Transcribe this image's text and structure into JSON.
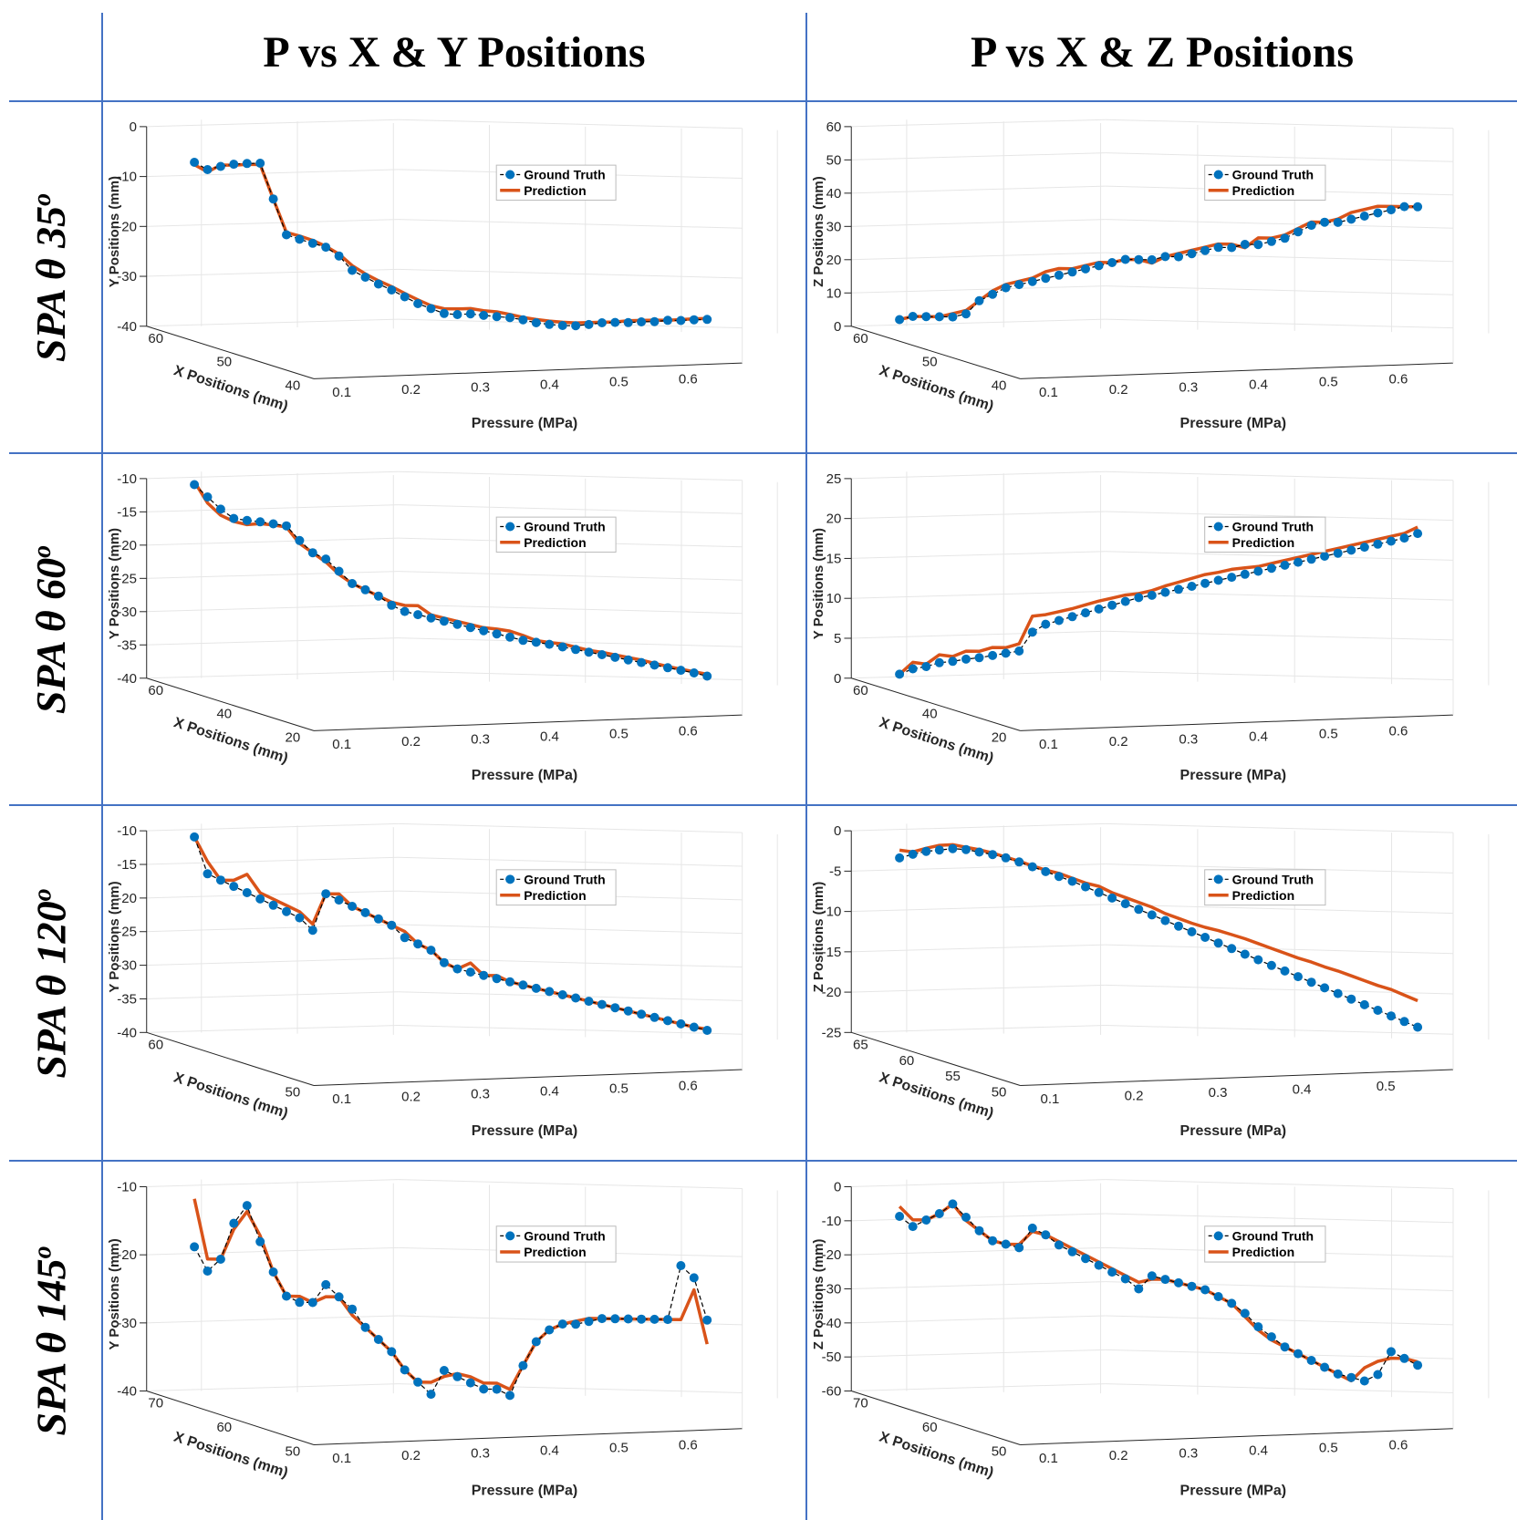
{
  "headers": {
    "col1": "P vs X & Y Positions",
    "col2": "P vs X & Z Positions"
  },
  "rows": [
    {
      "label": "SPA θ 35",
      "sup": "o"
    },
    {
      "label": "SPA θ 60",
      "sup": "o"
    },
    {
      "label": "SPA θ 120",
      "sup": "o"
    },
    {
      "label": "SPA θ 145",
      "sup": "o"
    }
  ],
  "colors": {
    "ground_truth": "#0072bd",
    "prediction": "#d95319",
    "grid_rule": "#4472c4",
    "axis_grid": "#e6e6e6"
  },
  "chart_data": [
    {
      "id": "r1c1",
      "type": "line3d",
      "xlabel": "Pressure (MPa)",
      "ylabel": "X Positions (mm)",
      "zlabel": "Y Positions (mm)",
      "xticks": [
        "0.1",
        "0.2",
        "0.3",
        "0.4",
        "0.5",
        "0.6"
      ],
      "yticks": [
        "60",
        "50",
        "40"
      ],
      "zticks": [
        "0",
        "-10",
        "-20",
        "-30",
        "-40"
      ],
      "legend": [
        "Ground Truth",
        "Prediction"
      ],
      "legend_position": "top-right",
      "zlim": [
        -42,
        0
      ],
      "series": [
        {
          "name": "Ground Truth",
          "values": [
            -7.5,
            -9.0,
            -8.3,
            -7.8,
            -7.6,
            -7.5,
            -15,
            -22.5,
            -23.4,
            -24.2,
            -25.0,
            -26.8,
            -29.8,
            -31.2,
            -32.6,
            -33.8,
            -35.2,
            -36.6,
            -37.6,
            -38.6,
            -38.8,
            -38.6,
            -38.9,
            -39.1,
            -39.3,
            -39.7,
            -40.3,
            -40.6,
            -40.8,
            -40.8,
            -40.5,
            -40.1,
            -40.0,
            -40.0,
            -39.8,
            -39.7,
            -39.4,
            -39.4,
            -39.2,
            -39.1
          ]
        },
        {
          "name": "Prediction",
          "values": [
            -8.0,
            -9.5,
            -8.0,
            -8.0,
            -7.8,
            -7.8,
            -15,
            -22.0,
            -22.7,
            -23.6,
            -24.8,
            -26.4,
            -28.8,
            -30.5,
            -31.9,
            -33.1,
            -34.5,
            -35.8,
            -37.0,
            -37.6,
            -37.6,
            -37.5,
            -37.9,
            -38.1,
            -38.6,
            -39.2,
            -39.6,
            -39.9,
            -40.1,
            -40.2,
            -40.1,
            -40.0,
            -39.9,
            -39.6,
            -39.5,
            -39.4,
            -39.4,
            -39.2,
            -39.0,
            -38.9
          ]
        }
      ]
    },
    {
      "id": "r1c2",
      "type": "line3d",
      "xlabel": "Pressure (MPa)",
      "ylabel": "X Positions (mm)",
      "zlabel": "Z Positions (mm)",
      "xticks": [
        "0.1",
        "0.2",
        "0.3",
        "0.4",
        "0.5",
        "0.6"
      ],
      "yticks": [
        "60",
        "50",
        "40"
      ],
      "zticks": [
        "60",
        "50",
        "40",
        "30",
        "20",
        "10",
        "0"
      ],
      "legend": [
        "Ground Truth",
        "Prediction"
      ],
      "legend_position": "top-right",
      "zlim": [
        0,
        60
      ],
      "series": [
        {
          "name": "Ground Truth",
          "values": [
            2,
            3,
            3,
            3,
            3,
            4,
            8,
            10,
            12,
            13,
            14,
            15,
            16,
            17,
            18,
            19,
            20,
            21,
            21,
            21,
            22,
            22,
            23,
            24,
            25,
            25,
            26,
            26,
            27,
            28,
            30,
            32,
            33,
            33,
            34,
            35,
            36,
            37,
            38,
            38
          ]
        },
        {
          "name": "Prediction",
          "values": [
            2,
            3,
            3,
            3,
            4,
            5,
            8,
            11,
            13,
            14,
            15,
            17,
            18,
            18,
            19,
            20,
            20,
            21,
            21,
            20,
            22,
            23,
            24,
            25,
            26,
            26,
            25,
            28,
            28,
            29,
            31,
            33,
            33,
            34,
            36,
            37,
            38,
            38,
            38,
            38
          ]
        }
      ]
    },
    {
      "id": "r2c1",
      "type": "line3d",
      "xlabel": "Pressure (MPa)",
      "ylabel": "X Positions (mm)",
      "zlabel": "Y Positions (mm)",
      "xticks": [
        "0.1",
        "0.2",
        "0.3",
        "0.4",
        "0.5",
        "0.6"
      ],
      "yticks": [
        "60",
        "40",
        "20"
      ],
      "zticks": [
        "-10",
        "-15",
        "-20",
        "-25",
        "-30",
        "-35",
        "-40"
      ],
      "legend": [
        "Ground Truth",
        "Prediction"
      ],
      "legend_position": "top-right",
      "zlim": [
        -42,
        -9
      ],
      "series": [
        {
          "name": "Ground Truth",
          "values": [
            -10,
            -12,
            -14,
            -15.5,
            -15.8,
            -16,
            -16.3,
            -16.6,
            -19,
            -21,
            -22,
            -24,
            -26,
            -27,
            -28,
            -29.5,
            -30.5,
            -31,
            -31.5,
            -32,
            -32.5,
            -33,
            -33.5,
            -34,
            -34.5,
            -35,
            -35.3,
            -35.6,
            -36,
            -36.4,
            -36.8,
            -37.2,
            -37.6,
            -38,
            -38.4,
            -38.8,
            -39.2,
            -39.6,
            -40,
            -40.5
          ]
        },
        {
          "name": "Prediction",
          "values": [
            -9.5,
            -13,
            -15,
            -16,
            -16.5,
            -16.3,
            -16.5,
            -16.8,
            -19.5,
            -21,
            -22.5,
            -24.5,
            -26,
            -27,
            -28,
            -29,
            -29.5,
            -29.5,
            -31,
            -31.5,
            -32,
            -32.5,
            -33,
            -33.2,
            -33.5,
            -34.2,
            -35,
            -35.3,
            -35.5,
            -36,
            -36.5,
            -36.8,
            -37.2,
            -37.6,
            -38,
            -38.5,
            -39,
            -39.4,
            -39.8,
            -40.2
          ]
        }
      ]
    },
    {
      "id": "r2c2",
      "type": "line3d",
      "xlabel": "Pressure (MPa)",
      "ylabel": "X Positions (mm)",
      "zlabel": "Y Positions (mm)",
      "xticks": [
        "0.1",
        "0.2",
        "0.3",
        "0.4",
        "0.5",
        "0.6"
      ],
      "yticks": [
        "60",
        "40",
        "20"
      ],
      "zticks": [
        "25",
        "20",
        "15",
        "10",
        "5",
        "0"
      ],
      "legend": [
        "Ground Truth",
        "Prediction"
      ],
      "legend_position": "top-right",
      "zlim": [
        0,
        25
      ],
      "series": [
        {
          "name": "Ground Truth",
          "values": [
            0.5,
            1.2,
            1.5,
            2,
            2.2,
            2.5,
            2.7,
            3,
            3.3,
            3.6,
            6,
            7,
            7.5,
            8,
            8.5,
            9,
            9.5,
            10,
            10.5,
            10.8,
            11.2,
            11.6,
            12,
            12.4,
            12.8,
            13.2,
            13.6,
            14,
            14.4,
            14.8,
            15.2,
            15.6,
            16,
            16.4,
            16.8,
            17.2,
            17.6,
            18,
            18.4,
            19
          ]
        },
        {
          "name": "Prediction",
          "values": [
            0.5,
            2,
            1.8,
            3,
            2.8,
            3.5,
            3.5,
            4,
            4,
            4.5,
            8,
            8.2,
            8.6,
            9,
            9.5,
            10,
            10.4,
            10.8,
            11,
            11.4,
            12,
            12.5,
            13,
            13.5,
            13.8,
            14.2,
            14.4,
            14.6,
            15,
            15.4,
            15.8,
            16.2,
            16.6,
            17,
            17.4,
            17.8,
            18.2,
            18.6,
            19,
            19.8
          ]
        }
      ]
    },
    {
      "id": "r3c1",
      "type": "line3d",
      "xlabel": "Pressure (MPa)",
      "ylabel": "X Positions (mm)",
      "zlabel": "Y Positions (mm)",
      "xticks": [
        "0.1",
        "0.2",
        "0.3",
        "0.4",
        "0.5",
        "0.6"
      ],
      "yticks": [
        "60",
        "50"
      ],
      "zticks": [
        "-10",
        "-15",
        "-20",
        "-25",
        "-30",
        "-35",
        "-40"
      ],
      "legend": [
        "Ground Truth",
        "Prediction"
      ],
      "legend_position": "top-right",
      "zlim": [
        -42,
        -9
      ],
      "series": [
        {
          "name": "Ground Truth",
          "values": [
            -10,
            -16,
            -17,
            -18,
            -19,
            -20,
            -21,
            -22,
            -23,
            -25,
            -19,
            -20,
            -21,
            -22,
            -23,
            -24,
            -26,
            -27,
            -28,
            -30,
            -31,
            -31.5,
            -32,
            -32.5,
            -33,
            -33.5,
            -34,
            -34.5,
            -35,
            -35.5,
            -36,
            -36.5,
            -37,
            -37.5,
            -38,
            -38.5,
            -39,
            -39.5,
            -40,
            -40.5
          ]
        },
        {
          "name": "Prediction",
          "values": [
            -10,
            -14,
            -17,
            -17,
            -16,
            -19,
            -20,
            -21,
            -22,
            -24,
            -19,
            -19,
            -21,
            -22,
            -23,
            -24,
            -25,
            -27,
            -28,
            -30,
            -31,
            -30,
            -32,
            -32,
            -33,
            -33.5,
            -34,
            -34.5,
            -35,
            -35.5,
            -36,
            -36.5,
            -37,
            -37.5,
            -38,
            -38.5,
            -39,
            -39.5,
            -40,
            -40.3
          ]
        }
      ]
    },
    {
      "id": "r3c2",
      "type": "line3d",
      "xlabel": "Pressure (MPa)",
      "ylabel": "X Positions (mm)",
      "zlabel": "Z Positions (mm)",
      "xticks": [
        "0.1",
        "0.2",
        "0.3",
        "0.4",
        "0.5"
      ],
      "yticks": [
        "65",
        "60",
        "55",
        "50"
      ],
      "zticks": [
        "0",
        "-5",
        "-10",
        "-15",
        "-20",
        "-25"
      ],
      "legend": [
        "Ground Truth",
        "Prediction"
      ],
      "legend_position": "top-right",
      "zlim": [
        -26,
        0
      ],
      "series": [
        {
          "name": "Ground Truth",
          "values": [
            -3.5,
            -3,
            -2.6,
            -2.4,
            -2.2,
            -2.3,
            -2.6,
            -2.9,
            -3.3,
            -3.8,
            -4.4,
            -5,
            -5.6,
            -6.2,
            -6.9,
            -7.6,
            -8.3,
            -9,
            -9.7,
            -10.4,
            -11.1,
            -11.8,
            -12.5,
            -13.2,
            -13.9,
            -14.6,
            -15.3,
            -16,
            -16.7,
            -17.4,
            -18.1,
            -18.8,
            -19.5,
            -20.2,
            -20.9,
            -21.6,
            -22.3,
            -23,
            -23.7,
            -24.4
          ]
        },
        {
          "name": "Prediction",
          "values": [
            -2.5,
            -2.7,
            -2.2,
            -1.8,
            -1.7,
            -2.0,
            -2.3,
            -2.7,
            -3.2,
            -3.7,
            -4.3,
            -4.8,
            -5.2,
            -5.8,
            -6.4,
            -6.8,
            -7.6,
            -8.2,
            -8.8,
            -9.4,
            -10.2,
            -10.8,
            -11.4,
            -11.9,
            -12.3,
            -12.8,
            -13.3,
            -13.9,
            -14.5,
            -15.1,
            -15.7,
            -16.2,
            -16.8,
            -17.3,
            -17.9,
            -18.5,
            -19.1,
            -19.6,
            -20.3,
            -21.0
          ]
        }
      ]
    },
    {
      "id": "r4c1",
      "type": "line3d",
      "xlabel": "Pressure (MPa)",
      "ylabel": "X Positions (mm)",
      "zlabel": "Y Positions (mm)",
      "xticks": [
        "0.1",
        "0.2",
        "0.3",
        "0.4",
        "0.5",
        "0.6"
      ],
      "yticks": [
        "70",
        "60",
        "50"
      ],
      "zticks": [
        "-10",
        "-20",
        "-30",
        "-40"
      ],
      "legend": [
        "Ground Truth",
        "Prediction"
      ],
      "legend_position": "top-right",
      "zlim": [
        -42,
        -8
      ],
      "series": [
        {
          "name": "Ground Truth",
          "values": [
            -18,
            -22,
            -20,
            -14,
            -11,
            -17,
            -22,
            -26,
            -27,
            -27,
            -24,
            -26,
            -28,
            -31,
            -33,
            -35,
            -38,
            -40,
            -42,
            -38,
            -39,
            -40,
            -41,
            -41,
            -42,
            -37,
            -33,
            -31,
            -30,
            -30,
            -29.5,
            -29,
            -29,
            -29,
            -29,
            -29,
            -29,
            -20,
            -22,
            -29
          ]
        },
        {
          "name": "Prediction",
          "values": [
            -10,
            -20,
            -20,
            -15,
            -12,
            -16,
            -22,
            -26,
            -26,
            -27,
            -26,
            -26,
            -29,
            -31,
            -33,
            -35,
            -38,
            -40,
            -40,
            -39,
            -38.5,
            -39,
            -40,
            -40,
            -41,
            -37,
            -33,
            -31,
            -30,
            -29.5,
            -29,
            -29,
            -29,
            -29,
            -29,
            -29,
            -29,
            -29,
            -24,
            -33
          ]
        }
      ]
    },
    {
      "id": "r4c2",
      "type": "line3d",
      "xlabel": "Pressure (MPa)",
      "ylabel": "X Positions (mm)",
      "zlabel": "Z Positions (mm)",
      "xticks": [
        "0.1",
        "0.2",
        "0.3",
        "0.4",
        "0.5",
        "0.6"
      ],
      "yticks": [
        "70",
        "60",
        "50"
      ],
      "zticks": [
        "0",
        "-10",
        "-20",
        "-30",
        "-40",
        "-50",
        "-60"
      ],
      "legend": [
        "Ground Truth",
        "Prediction"
      ],
      "legend_position": "top-right",
      "zlim": [
        -62,
        0
      ],
      "series": [
        {
          "name": "Ground Truth",
          "values": [
            -9,
            -12,
            -10,
            -8,
            -5,
            -9,
            -13,
            -16,
            -17,
            -18,
            -12,
            -14,
            -17,
            -19,
            -21,
            -23,
            -25,
            -27,
            -30,
            -26,
            -27,
            -28,
            -29,
            -30,
            -32,
            -34,
            -37,
            -41,
            -44,
            -47,
            -49,
            -51,
            -53,
            -55,
            -56,
            -57,
            -55,
            -48,
            -50,
            -52
          ]
        },
        {
          "name": "Prediction",
          "values": [
            -6,
            -10,
            -10,
            -8,
            -5,
            -10,
            -13,
            -16,
            -17,
            -17,
            -13,
            -14,
            -16,
            -18,
            -20,
            -22,
            -24,
            -26,
            -28,
            -27,
            -27,
            -28,
            -29,
            -30,
            -32,
            -34,
            -38,
            -42,
            -45,
            -47,
            -49,
            -51,
            -53,
            -55,
            -57,
            -53,
            -51,
            -50,
            -50,
            -51
          ]
        }
      ]
    }
  ]
}
